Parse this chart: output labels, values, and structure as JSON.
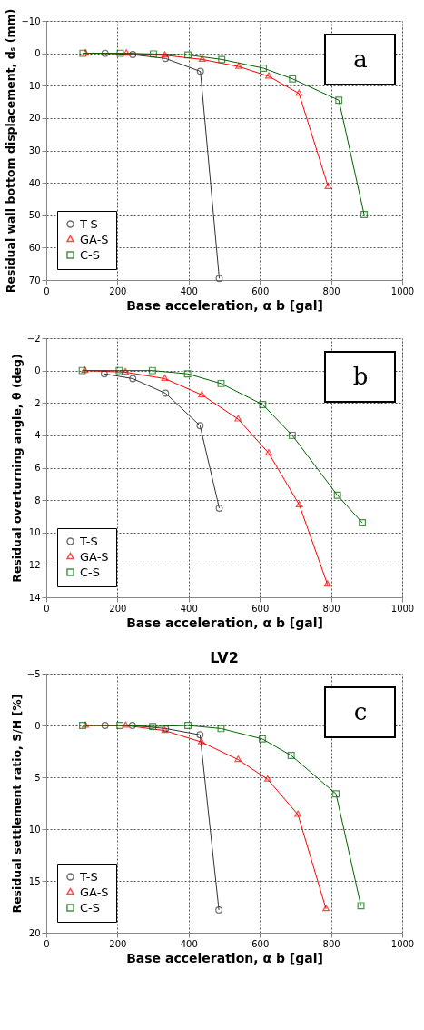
{
  "chart_data": [
    {
      "type": "line",
      "xlabel": "Base acceleration, α b [gal]",
      "ylabel": "Residual wall bottom displacement, dₛ (mm)",
      "annotations": [
        "a"
      ],
      "xlim": [
        0,
        1000
      ],
      "xticks": [
        0,
        200,
        400,
        600,
        800,
        1000
      ],
      "ylim": [
        70,
        -10
      ],
      "yticks": [
        -10,
        0,
        10,
        20,
        30,
        40,
        50,
        60,
        70
      ],
      "grid": true,
      "legend": "bottom left",
      "series": [
        {
          "name": "T-S",
          "color": "#333333",
          "marker": "circle",
          "x": [
            165,
            243,
            335,
            433,
            486
          ],
          "values": [
            0,
            0.4,
            1.6,
            5.6,
            69.5
          ]
        },
        {
          "name": "GA-S",
          "color": "#ff0000",
          "marker": "triangle",
          "x": [
            110,
            225,
            333,
            438,
            541,
            625,
            710,
            792
          ],
          "values": [
            0,
            0,
            0.6,
            1.9,
            4.1,
            7.1,
            12.4,
            41.2
          ]
        },
        {
          "name": "C-S",
          "color": "#006400",
          "marker": "square",
          "x": [
            103,
            208,
            301,
            398,
            493,
            610,
            692,
            822,
            893
          ],
          "values": [
            0,
            0,
            0.2,
            0.5,
            1.9,
            4.6,
            7.9,
            14.5,
            49.8
          ]
        }
      ]
    },
    {
      "type": "line",
      "xlabel": "Base acceleration, α b [gal]",
      "ylabel": "Residual overturning angle, θ (deg)",
      "annotations": [
        "b"
      ],
      "xlim": [
        0,
        1000
      ],
      "xticks": [
        0,
        200,
        400,
        600,
        800,
        1000
      ],
      "ylim": [
        14,
        -2
      ],
      "yticks": [
        -2,
        0,
        2,
        4,
        6,
        8,
        10,
        12,
        14
      ],
      "grid": true,
      "legend": "bottom left",
      "series": [
        {
          "name": "T-S",
          "color": "#333333",
          "marker": "circle",
          "x": [
            163,
            243,
            335,
            432,
            486
          ],
          "values": [
            0.2,
            0.5,
            1.4,
            3.4,
            8.5
          ]
        },
        {
          "name": "GA-S",
          "color": "#ff0000",
          "marker": "triangle",
          "x": [
            108,
            222,
            333,
            437,
            539,
            625,
            711,
            790
          ],
          "values": [
            0,
            0.1,
            0.5,
            1.5,
            3.0,
            5.1,
            8.3,
            13.2
          ]
        },
        {
          "name": "C-S",
          "color": "#006400",
          "marker": "square",
          "x": [
            101,
            205,
            298,
            397,
            491,
            608,
            691,
            818,
            888
          ],
          "values": [
            0,
            0,
            0,
            0.2,
            0.8,
            2.1,
            4.0,
            7.7,
            9.4
          ]
        }
      ]
    },
    {
      "type": "line",
      "title": "LV2",
      "xlabel": "Base acceleration, α b [gal]",
      "ylabel": "Residual settlement ratio, S/H [%]",
      "annotations": [
        "c"
      ],
      "xlim": [
        0,
        1000
      ],
      "xticks": [
        0,
        200,
        400,
        600,
        800,
        1000
      ],
      "ylim": [
        20,
        -5
      ],
      "yticks": [
        -5,
        0,
        5,
        10,
        15,
        20
      ],
      "grid": true,
      "legend": "bottom left",
      "series": [
        {
          "name": "T-S",
          "color": "#333333",
          "marker": "circle",
          "x": [
            165,
            242,
            335,
            432,
            485
          ],
          "values": [
            0,
            0,
            0.3,
            0.9,
            17.8
          ]
        },
        {
          "name": "GA-S",
          "color": "#ff0000",
          "marker": "triangle",
          "x": [
            110,
            223,
            333,
            436,
            539,
            622,
            707,
            786
          ],
          "values": [
            0,
            0,
            0.5,
            1.6,
            3.3,
            5.2,
            8.6,
            17.7
          ]
        },
        {
          "name": "C-S",
          "color": "#006400",
          "marker": "square",
          "x": [
            102,
            207,
            299,
            398,
            491,
            607,
            688,
            814,
            884
          ],
          "values": [
            0,
            0,
            0.1,
            0,
            0.3,
            1.3,
            2.9,
            6.6,
            17.4
          ]
        }
      ]
    }
  ]
}
